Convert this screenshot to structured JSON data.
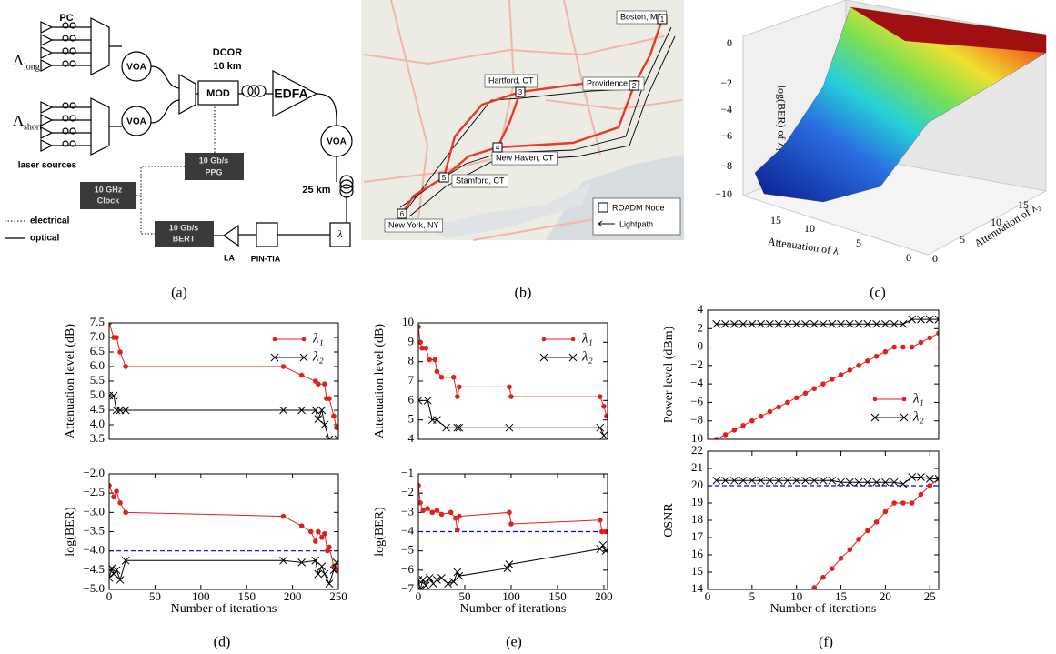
{
  "panel_a": {
    "pc": "PC",
    "lambda_long": "Λ",
    "lambda_long_sub": "long",
    "lambda_short": "Λ",
    "lambda_short_sub": "short",
    "laser_sources": "laser sources",
    "voa_1": "VOA",
    "voa_2": "VOA",
    "voa_3": "VOA",
    "mod": "MOD",
    "dcor": "DCOR",
    "dcor_length": "10 km",
    "edfa": "EDFA",
    "fiber_length": "25 km",
    "filter": "λ",
    "pin_tia": "PIN-TIA",
    "la": "LA",
    "bert_rate": "10 Gb/s",
    "bert": "BERT",
    "ppg_rate": "10 Gb/s",
    "ppg": "PPG",
    "clock_freq": "10 GHz",
    "clock": "Clock",
    "legend_electrical": "electrical",
    "legend_optical": "optical"
  },
  "panel_b": {
    "cities": [
      "Boston, MA",
      "Providence, RI",
      "Hartford, CT",
      "New Haven, CT",
      "Stamford, CT",
      "New York, NY"
    ],
    "nodes": [
      "1",
      "2",
      "3",
      "4",
      "5",
      "6"
    ],
    "legend_node": "ROADM Node",
    "legend_lightpath": "Lightpath"
  },
  "panel_c": {
    "z_label": "log(BER) of λ₁",
    "z_ticks": [
      "0",
      "−2",
      "−4",
      "−6",
      "−8",
      "−10"
    ],
    "x_label": "Attenuation of λ₁",
    "x_ticks": [
      "15",
      "10",
      "5",
      "0"
    ],
    "y_label": "Attenuation of λ₂",
    "y_ticks": [
      "0",
      "5",
      "10",
      "15"
    ]
  },
  "captions": [
    "(a)",
    "(b)",
    "(c)",
    "(d)",
    "(e)",
    "(f)"
  ],
  "chart_data": [
    {
      "type": "line",
      "ylabel": "Attenuation level (dB)",
      "xlim": [
        0,
        250
      ],
      "ylim": [
        3.5,
        7.5
      ],
      "yticks": [
        3.5,
        {
          "value": 4,
          "label": "4.0"
        },
        4.5,
        {
          "value": 5,
          "label": "5.0"
        },
        5.5,
        {
          "value": 6,
          "label": "6.0"
        },
        6.5,
        {
          "value": 7,
          "label": "7.0"
        },
        7.5
      ],
      "legend": "upper right",
      "series": [
        {
          "name": "λ₁",
          "color": "#e0201b",
          "marker": "o",
          "x": [
            0,
            5,
            8,
            12,
            18,
            190,
            210,
            225,
            228,
            235,
            237,
            240,
            245,
            248
          ],
          "values": [
            7.5,
            7.0,
            7.0,
            6.5,
            6.0,
            6.0,
            5.7,
            5.5,
            5.4,
            5.4,
            4.9,
            4.9,
            4.3,
            3.9
          ]
        },
        {
          "name": "λ₂",
          "color": "#000000",
          "marker": "x",
          "x": [
            0,
            5,
            8,
            12,
            18,
            190,
            210,
            225,
            228,
            232,
            235,
            240,
            250
          ],
          "values": [
            5.0,
            5.0,
            4.5,
            4.5,
            4.5,
            4.5,
            4.5,
            4.5,
            4.2,
            4.5,
            4.0,
            3.5,
            3.5
          ]
        }
      ]
    },
    {
      "type": "line",
      "ylabel": "log(BER)",
      "xlabel": "Number of iterations",
      "xlim": [
        0,
        250
      ],
      "xticks": [
        0,
        50,
        100,
        150,
        200,
        250
      ],
      "ylim": [
        -5,
        -2
      ],
      "yticks": [
        {
          "value": -5,
          "label": "−5.0"
        },
        {
          "value": -4.5,
          "label": "−4.5"
        },
        {
          "value": -4,
          "label": "−4.0"
        },
        {
          "value": -3.5,
          "label": "−3.5"
        },
        {
          "value": -3,
          "label": "−3.0"
        },
        {
          "value": -2.5,
          "label": "−2.5"
        },
        {
          "value": -2,
          "label": "−2.0"
        }
      ],
      "hline": -4,
      "hline_color": "#0000ff",
      "series": [
        {
          "color": "#e0201b",
          "marker": "o",
          "x": [
            0,
            5,
            8,
            12,
            18,
            190,
            210,
            220,
            225,
            228,
            232,
            235,
            238,
            240,
            245,
            248
          ],
          "values": [
            -2.3,
            -2.6,
            -2.45,
            -2.75,
            -3.0,
            -3.1,
            -3.35,
            -3.5,
            -3.75,
            -3.5,
            -3.65,
            -3.55,
            -4.0,
            -3.9,
            -4.4,
            -4.5
          ]
        },
        {
          "color": "#000000",
          "marker": "x",
          "x": [
            0,
            3,
            5,
            8,
            12,
            18,
            190,
            210,
            225,
            228,
            232,
            235,
            240,
            245,
            248
          ],
          "values": [
            -4.7,
            -4.45,
            -4.6,
            -4.5,
            -4.75,
            -4.25,
            -4.25,
            -4.3,
            -4.25,
            -4.6,
            -4.4,
            -4.6,
            -4.85,
            -4.5,
            -4.3
          ]
        }
      ]
    },
    {
      "type": "line",
      "ylabel": "Attenuation level (dB)",
      "xlim": [
        0,
        204
      ],
      "ylim": [
        4,
        10
      ],
      "yticks": [
        4,
        5,
        6,
        7,
        8,
        9,
        10
      ],
      "legend": "upper right",
      "series": [
        {
          "name": "λ₁",
          "color": "#e0201b",
          "marker": "o",
          "x": [
            0,
            2,
            4,
            8,
            12,
            18,
            20,
            25,
            38,
            42,
            44,
            98,
            100,
            196,
            200,
            203
          ],
          "values": [
            9.8,
            9.0,
            8.7,
            8.7,
            8.1,
            8.1,
            7.5,
            7.2,
            7.2,
            6.2,
            6.7,
            6.7,
            6.2,
            6.2,
            5.7,
            5.2
          ]
        },
        {
          "name": "λ₂",
          "color": "#000000",
          "marker": "x",
          "x": [
            0,
            10,
            15,
            20,
            30,
            42,
            44,
            98,
            196,
            200
          ],
          "values": [
            6,
            6,
            5,
            5,
            4.6,
            4.6,
            4.6,
            4.6,
            4.6,
            4.2
          ]
        }
      ]
    },
    {
      "type": "line",
      "ylabel": "log(BER)",
      "xlabel": "Number of iterations",
      "xlim": [
        0,
        204
      ],
      "xticks": [
        0,
        50,
        100,
        150,
        200
      ],
      "ylim": [
        -7,
        -1
      ],
      "yticks": [
        {
          "value": -7,
          "label": "−7"
        },
        {
          "value": -6,
          "label": "−6"
        },
        {
          "value": -5,
          "label": "−5"
        },
        {
          "value": -4,
          "label": "−4"
        },
        {
          "value": -3,
          "label": "−3"
        },
        {
          "value": -2,
          "label": "−2"
        },
        {
          "value": -1,
          "label": "−1"
        }
      ],
      "hline": -4,
      "hline_color": "#0000ff",
      "series": [
        {
          "color": "#e0201b",
          "marker": "o",
          "x": [
            0,
            2,
            5,
            10,
            15,
            20,
            25,
            35,
            40,
            42,
            44,
            98,
            100,
            196,
            198,
            202
          ],
          "values": [
            -1.6,
            -2.5,
            -2.9,
            -2.8,
            -3.0,
            -2.9,
            -3.1,
            -3.0,
            -3.3,
            -3.9,
            -3.2,
            -3.0,
            -3.6,
            -3.4,
            -4.0,
            -4.0
          ]
        },
        {
          "color": "#000000",
          "marker": "x",
          "x": [
            0,
            2,
            5,
            8,
            12,
            16,
            20,
            25,
            32,
            38,
            42,
            44,
            96,
            98,
            196,
            199,
            202
          ],
          "values": [
            -6.5,
            -7.0,
            -6.5,
            -6.8,
            -6.4,
            -6.7,
            -6.5,
            -6.4,
            -6.7,
            -6.6,
            -6.1,
            -6.3,
            -5.9,
            -5.7,
            -4.9,
            -4.7,
            -5.0
          ]
        }
      ]
    },
    {
      "type": "line",
      "ylabel": "Power level (dBm)",
      "xlim": [
        0,
        26
      ],
      "ylim": [
        -10,
        4
      ],
      "yticks": [
        {
          "value": -10,
          "label": "−10"
        },
        {
          "value": -8,
          "label": "−8"
        },
        {
          "value": -6,
          "label": "−6"
        },
        {
          "value": -4,
          "label": "−4"
        },
        {
          "value": -2,
          "label": "−2"
        },
        0,
        2,
        4
      ],
      "legend": "lower right",
      "series": [
        {
          "name": "λ₁",
          "color": "#e0201b",
          "marker": "o",
          "x": [
            1,
            2,
            3,
            4,
            5,
            6,
            7,
            8,
            9,
            10,
            11,
            12,
            13,
            14,
            15,
            16,
            17,
            18,
            19,
            20,
            21,
            22,
            23,
            24,
            25,
            26
          ],
          "values": [
            -10,
            -9.5,
            -9,
            -8.5,
            -8,
            -7.5,
            -7,
            -6.5,
            -6,
            -5.5,
            -5,
            -4.5,
            -4,
            -3.5,
            -3,
            -2.5,
            -2,
            -1.5,
            -1,
            -0.5,
            0,
            0,
            0,
            0.5,
            1,
            1.5
          ]
        },
        {
          "name": "λ₂",
          "color": "#000000",
          "marker": "x",
          "x": [
            1,
            2,
            3,
            4,
            5,
            6,
            7,
            8,
            9,
            10,
            11,
            12,
            13,
            14,
            15,
            16,
            17,
            18,
            19,
            20,
            21,
            22,
            23,
            24,
            25,
            26
          ],
          "values": [
            2.5,
            2.5,
            2.5,
            2.5,
            2.5,
            2.5,
            2.5,
            2.5,
            2.5,
            2.5,
            2.5,
            2.5,
            2.5,
            2.5,
            2.5,
            2.5,
            2.5,
            2.5,
            2.5,
            2.5,
            2.5,
            2.5,
            3,
            3,
            3,
            3
          ]
        }
      ]
    },
    {
      "type": "line",
      "ylabel": "OSNR",
      "xlabel": "Number of iterations",
      "xlim": [
        0,
        26
      ],
      "xticks": [
        0,
        5,
        10,
        15,
        20,
        25
      ],
      "ylim": [
        14,
        22
      ],
      "yticks": [
        14,
        15,
        16,
        17,
        18,
        19,
        20,
        21,
        22
      ],
      "hline": 20,
      "hline_color": "#0000ff",
      "series": [
        {
          "color": "#e0201b",
          "marker": "o",
          "x": [
            12,
            13,
            14,
            15,
            16,
            17,
            18,
            19,
            20,
            21,
            22,
            23,
            24,
            25,
            26
          ],
          "values": [
            14.1,
            14.7,
            15.2,
            15.8,
            16.3,
            16.9,
            17.4,
            17.9,
            18.5,
            19.0,
            19.0,
            19.0,
            19.5,
            20.0,
            20.4
          ]
        },
        {
          "color": "#000000",
          "marker": "x",
          "x": [
            1,
            2,
            3,
            4,
            5,
            6,
            7,
            8,
            9,
            10,
            11,
            12,
            13,
            14,
            15,
            16,
            17,
            18,
            19,
            20,
            21,
            22,
            23,
            24,
            25,
            26
          ],
          "values": [
            20.3,
            20.3,
            20.3,
            20.3,
            20.3,
            20.3,
            20.3,
            20.3,
            20.3,
            20.3,
            20.3,
            20.3,
            20.3,
            20.3,
            20.2,
            20.2,
            20.2,
            20.2,
            20.2,
            20.2,
            20.2,
            20.1,
            20.5,
            20.5,
            20.4,
            20.4
          ]
        }
      ]
    }
  ]
}
